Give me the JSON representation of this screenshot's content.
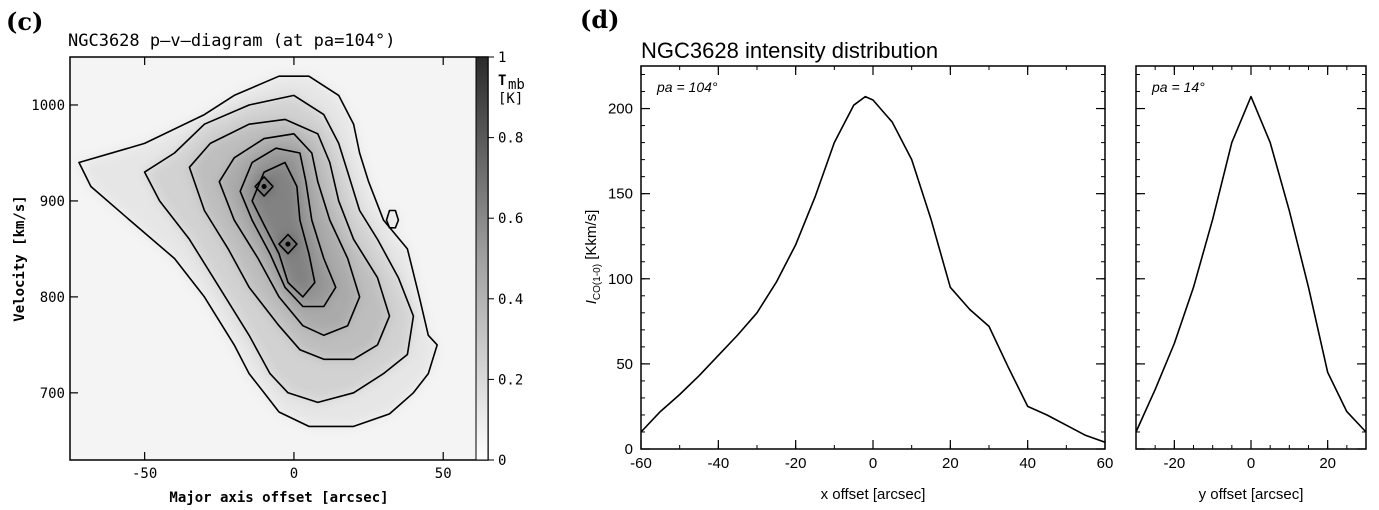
{
  "panels": {
    "c": {
      "letter": "(c)",
      "title": "NGC3628   p–v–diagram (at pa=104°)"
    },
    "d": {
      "letter": "(d)",
      "title": "NGC3628  intensity distribution"
    }
  },
  "chart_data": [
    {
      "id": "pv-diagram",
      "type": "heatmap",
      "title": "NGC3628   p–v–diagram (at pa=104°)",
      "xlabel": "Major axis offset [arcsec]",
      "ylabel": "Velocity [km/s]",
      "xlim": [
        -75,
        65
      ],
      "ylim": [
        630,
        1050
      ],
      "xticks": [
        "-50",
        "0",
        "50"
      ],
      "xtick_values": [
        -50,
        0,
        50
      ],
      "yticks": [
        "700",
        "800",
        "900",
        "1000"
      ],
      "ytick_values": [
        700,
        800,
        900,
        1000
      ],
      "colorbar": {
        "label_top": "T",
        "label_sub": "mb",
        "unit": "[K]",
        "range": [
          0,
          1
        ],
        "ticks": [
          "0",
          "0.2",
          "0.4",
          "0.6",
          "0.8",
          "1"
        ],
        "tick_values": [
          0,
          0.2,
          0.4,
          0.6,
          0.8,
          1.0
        ]
      },
      "peaks": [
        {
          "x": -10,
          "y": 915,
          "value": 0.9
        },
        {
          "x": -2,
          "y": 855,
          "value": 0.85
        }
      ],
      "contours": [
        {
          "level": 0.1,
          "points": [
            [
              -72,
              940
            ],
            [
              -50,
              960
            ],
            [
              -30,
              990
            ],
            [
              -20,
              1010
            ],
            [
              -5,
              1030
            ],
            [
              5,
              1030
            ],
            [
              15,
              1010
            ],
            [
              20,
              980
            ],
            [
              22,
              950
            ],
            [
              25,
              920
            ],
            [
              30,
              880
            ],
            [
              38,
              850
            ],
            [
              42,
              800
            ],
            [
              45,
              760
            ],
            [
              48,
              750
            ],
            [
              45,
              720
            ],
            [
              40,
              700
            ],
            [
              32,
              678
            ],
            [
              20,
              665
            ],
            [
              5,
              665
            ],
            [
              -5,
              680
            ],
            [
              -10,
              700
            ],
            [
              -15,
              720
            ],
            [
              -20,
              750
            ],
            [
              -30,
              800
            ],
            [
              -40,
              840
            ],
            [
              -55,
              880
            ],
            [
              -68,
              915
            ],
            [
              -72,
              940
            ]
          ]
        },
        {
          "level": 0.2,
          "points": [
            [
              -50,
              930
            ],
            [
              -40,
              950
            ],
            [
              -30,
              980
            ],
            [
              -15,
              1000
            ],
            [
              0,
              1010
            ],
            [
              10,
              990
            ],
            [
              15,
              960
            ],
            [
              18,
              930
            ],
            [
              22,
              890
            ],
            [
              28,
              860
            ],
            [
              35,
              820
            ],
            [
              40,
              780
            ],
            [
              38,
              740
            ],
            [
              30,
              720
            ],
            [
              20,
              700
            ],
            [
              8,
              690
            ],
            [
              -2,
              700
            ],
            [
              -8,
              720
            ],
            [
              -15,
              760
            ],
            [
              -25,
              810
            ],
            [
              -35,
              860
            ],
            [
              -45,
              900
            ],
            [
              -50,
              930
            ]
          ]
        },
        {
          "level": 0.3,
          "points": [
            [
              -35,
              935
            ],
            [
              -28,
              960
            ],
            [
              -15,
              980
            ],
            [
              -3,
              985
            ],
            [
              8,
              970
            ],
            [
              12,
              940
            ],
            [
              15,
              900
            ],
            [
              20,
              860
            ],
            [
              28,
              820
            ],
            [
              32,
              780
            ],
            [
              28,
              750
            ],
            [
              20,
              735
            ],
            [
              10,
              735
            ],
            [
              2,
              745
            ],
            [
              -5,
              770
            ],
            [
              -15,
              810
            ],
            [
              -22,
              850
            ],
            [
              -30,
              890
            ],
            [
              -35,
              935
            ]
          ]
        },
        {
          "level": 0.4,
          "points": [
            [
              -25,
              920
            ],
            [
              -20,
              945
            ],
            [
              -10,
              965
            ],
            [
              0,
              970
            ],
            [
              6,
              950
            ],
            [
              8,
              920
            ],
            [
              12,
              880
            ],
            [
              18,
              840
            ],
            [
              22,
              800
            ],
            [
              18,
              770
            ],
            [
              10,
              760
            ],
            [
              3,
              770
            ],
            [
              -5,
              800
            ],
            [
              -12,
              840
            ],
            [
              -20,
              880
            ],
            [
              -25,
              920
            ]
          ]
        },
        {
          "level": 0.5,
          "points": [
            [
              -18,
              910
            ],
            [
              -14,
              940
            ],
            [
              -6,
              955
            ],
            [
              2,
              950
            ],
            [
              4,
              920
            ],
            [
              6,
              880
            ],
            [
              10,
              840
            ],
            [
              14,
              810
            ],
            [
              10,
              790
            ],
            [
              3,
              790
            ],
            [
              -3,
              810
            ],
            [
              -8,
              845
            ],
            [
              -14,
              880
            ],
            [
              -18,
              910
            ]
          ]
        },
        {
          "level": 0.6,
          "points": [
            [
              -14,
              900
            ],
            [
              -10,
              930
            ],
            [
              -3,
              940
            ],
            [
              1,
              915
            ],
            [
              2,
              880
            ],
            [
              5,
              845
            ],
            [
              7,
              815
            ],
            [
              3,
              800
            ],
            [
              -2,
              815
            ],
            [
              -5,
              845
            ],
            [
              -10,
              875
            ],
            [
              -14,
              900
            ]
          ]
        },
        {
          "level": 0.8,
          "points": [
            [
              -13,
              915
            ],
            [
              -10,
              925
            ],
            [
              -7,
              915
            ],
            [
              -10,
              905
            ],
            [
              -13,
              915
            ]
          ]
        },
        {
          "level": 0.8,
          "points": [
            [
              -5,
              855
            ],
            [
              -2,
              865
            ],
            [
              1,
              855
            ],
            [
              -2,
              845
            ],
            [
              -5,
              855
            ]
          ]
        },
        {
          "level": 0.1,
          "points": [
            [
              31,
              880
            ],
            [
              32,
              890
            ],
            [
              34,
              890
            ],
            [
              35,
              880
            ],
            [
              34,
              872
            ],
            [
              32,
              872
            ],
            [
              31,
              880
            ]
          ]
        }
      ]
    },
    {
      "id": "intensity-major",
      "type": "line",
      "title": "NGC3628  intensity distribution",
      "annotation": "pa = 104°",
      "xlabel": "x offset [arcsec]",
      "ylabel": "I_CO(1-0) [Kkm/s]",
      "ylabel_main": "I",
      "ylabel_sub": "CO(1-0)",
      "ylabel_unit": "[Kkm/s]",
      "xlim": [
        -60,
        60
      ],
      "ylim": [
        0,
        225
      ],
      "xticks": [
        "-60",
        "-40",
        "-20",
        "0",
        "20",
        "40",
        "60"
      ],
      "xtick_values": [
        -60,
        -40,
        -20,
        0,
        20,
        40,
        60
      ],
      "yticks": [
        "0",
        "50",
        "100",
        "150",
        "200"
      ],
      "ytick_values": [
        0,
        50,
        100,
        150,
        200
      ],
      "series": [
        {
          "x": [
            -60,
            -55,
            -50,
            -45,
            -40,
            -35,
            -30,
            -25,
            -20,
            -15,
            -10,
            -5,
            -2,
            0,
            5,
            10,
            15,
            20,
            25,
            30,
            35,
            40,
            45,
            50,
            55,
            60
          ],
          "values": [
            10,
            22,
            32,
            43,
            55,
            67,
            80,
            98,
            120,
            148,
            180,
            202,
            207,
            205,
            192,
            170,
            135,
            95,
            82,
            72,
            48,
            25,
            20,
            14,
            8,
            4
          ]
        }
      ]
    },
    {
      "id": "intensity-minor",
      "type": "line",
      "annotation": "pa = 14°",
      "xlabel": "y offset [arcsec]",
      "xlim": [
        -30,
        30
      ],
      "ylim": [
        0,
        225
      ],
      "xticks": [
        "-20",
        "0",
        "20"
      ],
      "xtick_values": [
        -20,
        0,
        20
      ],
      "series": [
        {
          "x": [
            -30,
            -25,
            -20,
            -15,
            -10,
            -5,
            0,
            5,
            10,
            15,
            20,
            25,
            30
          ],
          "values": [
            10,
            35,
            62,
            95,
            135,
            180,
            207,
            180,
            140,
            95,
            45,
            22,
            10
          ]
        }
      ]
    }
  ]
}
